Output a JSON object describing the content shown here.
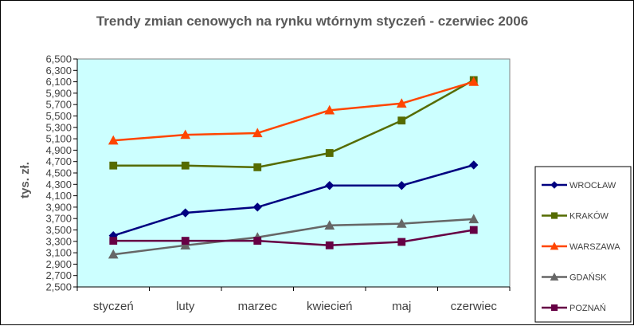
{
  "chart_data": {
    "type": "line",
    "title": "Trendy zmian cenowych na rynku wtórnym styczeń - czerwiec 2006",
    "ylabel": "tys. zł.",
    "xlabel": "",
    "categories": [
      "styczeń",
      "luty",
      "marzec",
      "kwiecień",
      "maj",
      "czerwiec"
    ],
    "ylim": [
      2500,
      6500
    ],
    "ytick_step": 200,
    "yticks": [
      "2,500",
      "2,700",
      "2,900",
      "3,100",
      "3,300",
      "3,500",
      "3,700",
      "3,900",
      "4,100",
      "4,300",
      "4,500",
      "4,700",
      "4,900",
      "5,100",
      "5,300",
      "5,500",
      "5,700",
      "5,900",
      "6,100",
      "6,300",
      "6,500"
    ],
    "grid": false,
    "plot_background": "#ccffff",
    "legend_position": "right",
    "series": [
      {
        "name": "WROCŁAW",
        "color": "#000080",
        "marker": "diamond",
        "values": [
          3400,
          3800,
          3900,
          4280,
          4280,
          4640
        ]
      },
      {
        "name": "KRAKÓW",
        "color": "#556b00",
        "marker": "square",
        "values": [
          4630,
          4630,
          4600,
          4850,
          5420,
          6130
        ]
      },
      {
        "name": "WARSZAWA",
        "color": "#ff4500",
        "marker": "triangle",
        "values": [
          5070,
          5170,
          5200,
          5600,
          5720,
          6100
        ]
      },
      {
        "name": "GDAŃSK",
        "color": "#666666",
        "marker": "triangle",
        "values": [
          3070,
          3230,
          3370,
          3580,
          3610,
          3690
        ]
      },
      {
        "name": "POZNAŃ",
        "color": "#660044",
        "marker": "square",
        "values": [
          3310,
          3310,
          3310,
          3230,
          3290,
          3500
        ]
      }
    ]
  }
}
